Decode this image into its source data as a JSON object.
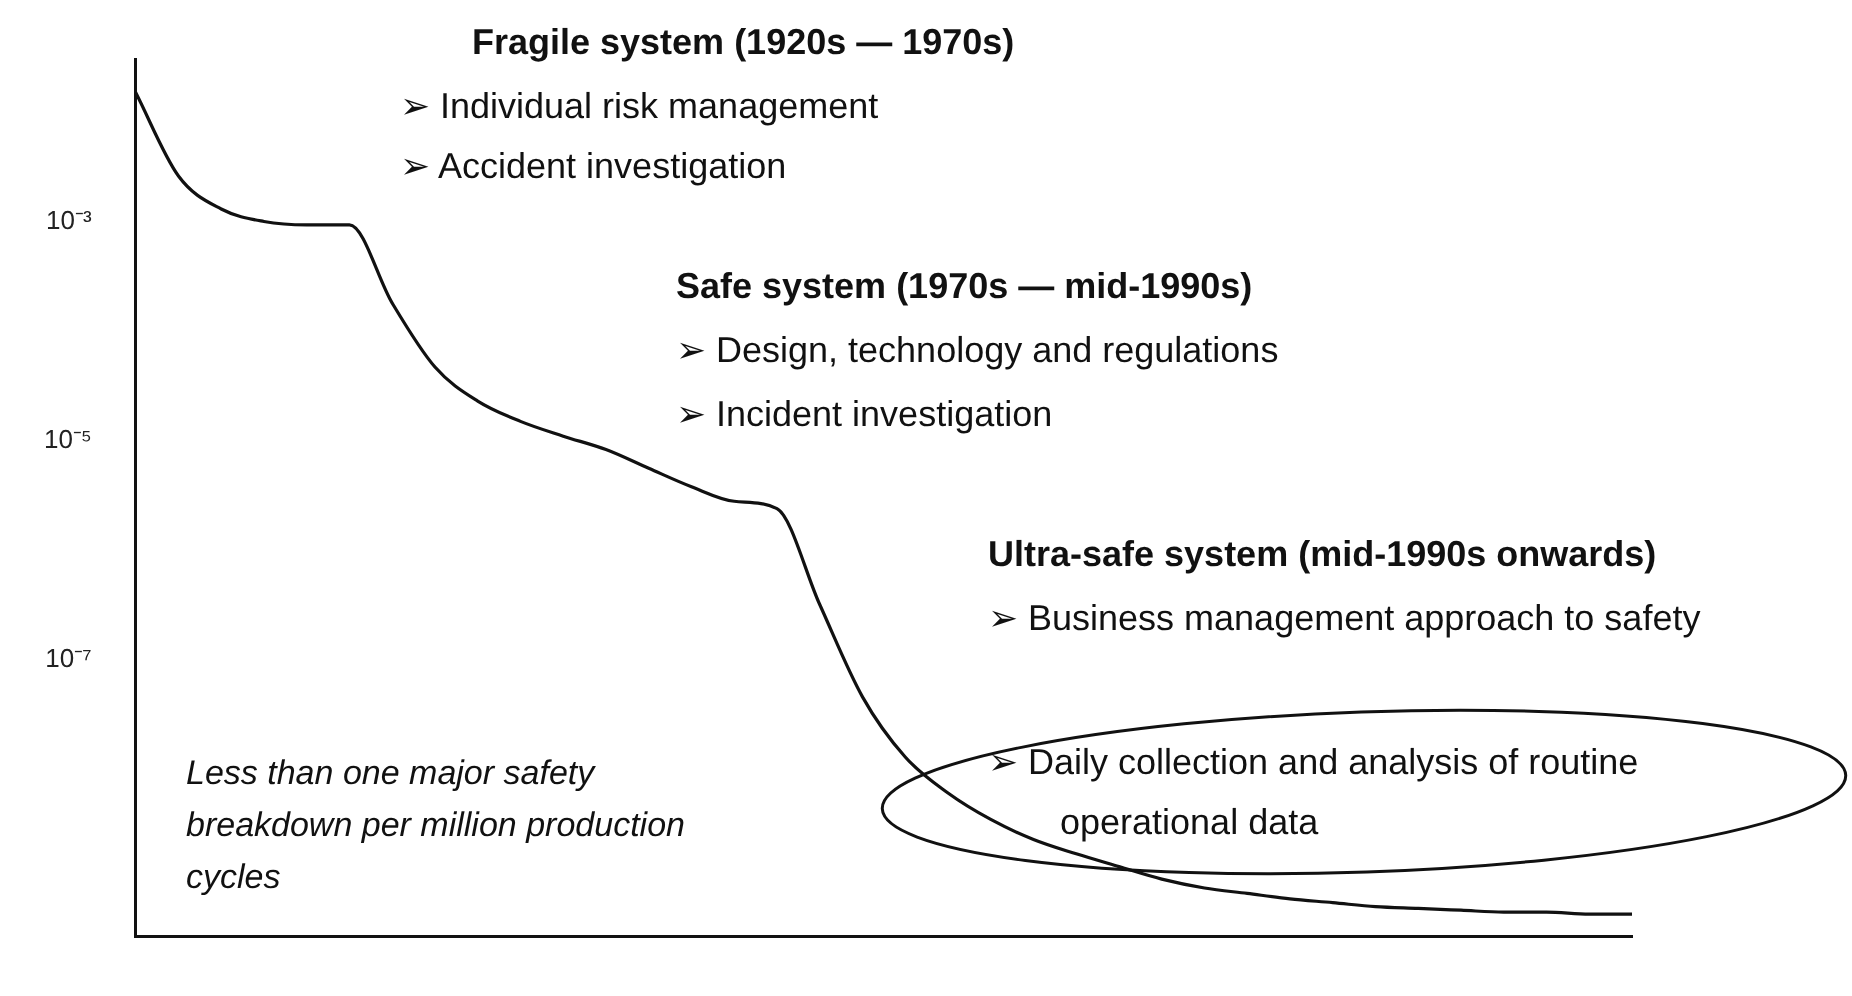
{
  "chart_data": {
    "type": "line",
    "log": "y",
    "tick_labels": "y",
    "marker": "none",
    "categories": [
      null,
      null,
      null,
      null,
      null,
      null,
      null,
      null,
      null,
      null,
      null,
      null,
      null,
      null,
      null,
      null,
      null,
      null,
      null,
      null,
      null,
      null,
      null,
      null,
      null,
      null,
      null,
      null,
      null,
      null,
      null,
      null,
      null,
      null,
      null,
      null
    ],
    "series": [
      {
        "color": "#111111",
        "values": [
          0.015,
          0.0026,
          0.0013,
          0.001,
          0.00093,
          0.00093,
          0.00018,
          4.7e-05,
          2.3e-05,
          1.5e-05,
          1.1e-05,
          8.3e-06,
          5.6e-06,
          3.8e-06,
          2.8e-06,
          2.4e-06,
          3.2e-07,
          4.6e-08,
          1.3e-08,
          6.1e-09,
          3.5e-09,
          2.3e-09,
          1.7e-09,
          1.3e-09,
          1e-09,
          8.3e-10,
          7.4e-10,
          6.6e-10,
          6.1e-10,
          5.6e-10,
          5.4e-10,
          5.2e-10,
          5e-10,
          5e-10,
          4.8e-10,
          4.8e-10
        ]
      }
    ],
    "ylim": [
      3e-10,
      0.03
    ],
    "yticks": [
      {
        "value": 0.001,
        "label": "10⁻³"
      },
      {
        "value": 1e-05,
        "label": "10⁻⁵"
      },
      {
        "value": 1e-07,
        "label": "10⁻⁷"
      }
    ],
    "annotations": [
      "Fragile system (1920s — 1970s)",
      "➢  Individual risk management",
      "➢  Accident investigation",
      "Safe system (1970s —  mid-1990s)",
      "➢  Design, technology and regulations",
      "➢  Incident investigation",
      "Ultra-safe system (mid-1990s onwards)",
      "➢  Business management approach to safety",
      "➢  Daily collection and analysis of routine operational data",
      "Less than one major safety breakdown per million production cycles"
    ]
  }
}
